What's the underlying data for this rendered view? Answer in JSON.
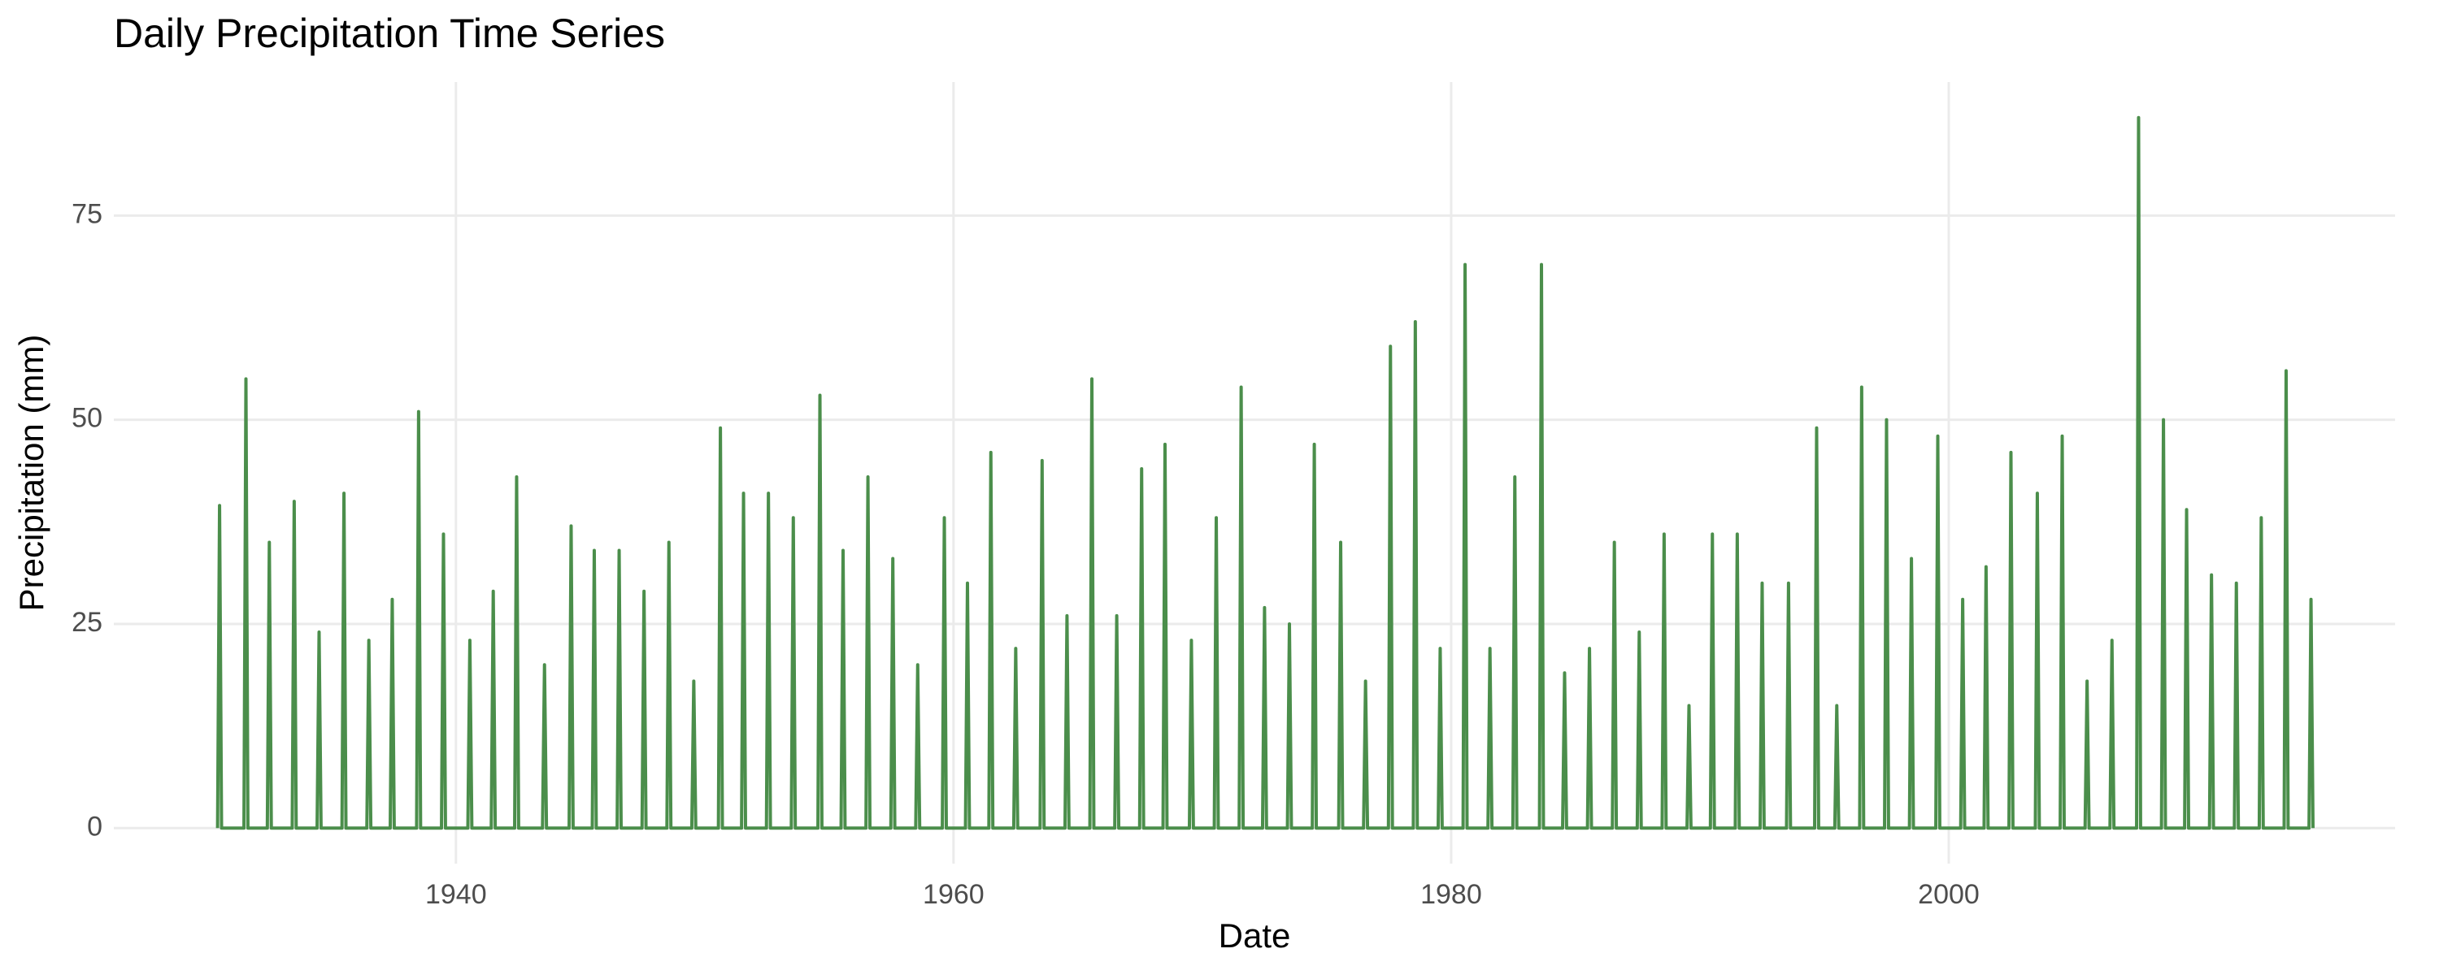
{
  "chart_data": {
    "type": "line",
    "title": "Daily Precipitation Time Series",
    "x_label": "Date",
    "y_label": "Precipitation (mm)",
    "xlim": [
      1926.25,
      2017.94
    ],
    "xticks": [
      1940,
      1960,
      1980,
      2000
    ],
    "ylim": [
      -4.35,
      91.35
    ],
    "yticks": [
      0,
      25,
      50,
      75
    ],
    "grid": true,
    "series": [
      {
        "name": "Precipitation",
        "color": "#4b8e4b",
        "x": [
          1930.42,
          1930.5,
          1930.58,
          1931.48,
          1931.56,
          1931.64,
          1932.42,
          1932.5,
          1932.58,
          1933.42,
          1933.5,
          1933.58,
          1934.42,
          1934.5,
          1934.58,
          1935.42,
          1935.5,
          1935.58,
          1936.42,
          1936.5,
          1936.58,
          1937.36,
          1937.44,
          1937.52,
          1938.42,
          1938.5,
          1938.58,
          1939.42,
          1939.5,
          1939.58,
          1940.48,
          1940.56,
          1940.64,
          1941.42,
          1941.5,
          1941.58,
          1942.36,
          1942.44,
          1942.52,
          1943.48,
          1943.56,
          1943.64,
          1944.55,
          1944.63,
          1944.71,
          1945.48,
          1945.56,
          1945.64,
          1946.48,
          1946.56,
          1946.64,
          1947.48,
          1947.56,
          1947.64,
          1948.48,
          1948.56,
          1948.64,
          1949.48,
          1949.56,
          1949.64,
          1950.55,
          1950.63,
          1950.71,
          1951.48,
          1951.56,
          1951.64,
          1952.48,
          1952.56,
          1952.64,
          1953.48,
          1953.56,
          1953.64,
          1954.55,
          1954.63,
          1954.71,
          1955.48,
          1955.56,
          1955.64,
          1956.48,
          1956.56,
          1956.64,
          1957.48,
          1957.56,
          1957.64,
          1958.48,
          1958.56,
          1958.64,
          1959.55,
          1959.63,
          1959.71,
          1960.48,
          1960.56,
          1960.64,
          1961.42,
          1961.5,
          1961.58,
          1962.42,
          1962.5,
          1962.58,
          1963.48,
          1963.56,
          1963.64,
          1964.48,
          1964.56,
          1964.64,
          1965.48,
          1965.56,
          1965.64,
          1966.48,
          1966.56,
          1966.64,
          1967.48,
          1967.56,
          1967.64,
          1968.42,
          1968.5,
          1968.58,
          1969.48,
          1969.56,
          1969.64,
          1970.48,
          1970.56,
          1970.64,
          1971.48,
          1971.56,
          1971.64,
          1972.42,
          1972.5,
          1972.58,
          1973.42,
          1973.5,
          1973.58,
          1974.42,
          1974.5,
          1974.58,
          1975.48,
          1975.56,
          1975.64,
          1976.48,
          1976.56,
          1976.64,
          1977.48,
          1977.56,
          1977.64,
          1978.48,
          1978.56,
          1978.64,
          1979.48,
          1979.56,
          1979.64,
          1980.48,
          1980.56,
          1980.64,
          1981.48,
          1981.56,
          1981.64,
          1982.48,
          1982.56,
          1982.64,
          1983.55,
          1983.63,
          1983.71,
          1984.48,
          1984.56,
          1984.64,
          1985.48,
          1985.56,
          1985.64,
          1986.48,
          1986.56,
          1986.64,
          1987.48,
          1987.56,
          1987.64,
          1988.48,
          1988.56,
          1988.64,
          1989.48,
          1989.56,
          1989.64,
          1990.42,
          1990.5,
          1990.58,
          1991.42,
          1991.5,
          1991.58,
          1992.42,
          1992.5,
          1992.58,
          1993.48,
          1993.56,
          1993.64,
          1994.61,
          1994.69,
          1994.77,
          1995.42,
          1995.5,
          1995.58,
          1996.42,
          1996.5,
          1996.58,
          1997.42,
          1997.5,
          1997.58,
          1998.42,
          1998.5,
          1998.58,
          1999.48,
          1999.56,
          1999.64,
          2000.48,
          2000.56,
          2000.64,
          2001.42,
          2001.5,
          2001.58,
          2002.42,
          2002.5,
          2002.58,
          2003.48,
          2003.56,
          2003.64,
          2004.48,
          2004.56,
          2004.64,
          2005.48,
          2005.56,
          2005.64,
          2006.48,
          2006.56,
          2006.64,
          2007.55,
          2007.63,
          2007.71,
          2008.55,
          2008.63,
          2008.71,
          2009.48,
          2009.56,
          2009.64,
          2010.48,
          2010.56,
          2010.64,
          2011.48,
          2011.56,
          2011.64,
          2012.48,
          2012.56,
          2012.64,
          2013.48,
          2013.56,
          2013.64,
          2014.48,
          2014.56,
          2014.64
        ],
        "values": [
          0,
          39.5,
          0,
          0,
          55,
          0,
          0,
          35,
          0,
          0,
          40,
          0,
          0,
          24,
          0,
          0,
          41,
          0,
          0,
          23,
          0,
          0,
          28,
          0,
          0,
          51,
          0,
          0,
          36,
          0,
          0,
          23,
          0,
          0,
          29,
          0,
          0,
          43,
          0,
          0,
          20,
          0,
          0,
          37,
          0,
          0,
          34,
          0,
          0,
          34,
          0,
          0,
          29,
          0,
          0,
          35,
          0,
          0,
          18,
          0,
          0,
          49,
          0,
          0,
          41,
          0,
          0,
          41,
          0,
          0,
          38,
          0,
          0,
          53,
          0,
          0,
          34,
          0,
          0,
          43,
          0,
          0,
          33,
          0,
          0,
          20,
          0,
          0,
          38,
          0,
          0,
          30,
          0,
          0,
          46,
          0,
          0,
          22,
          0,
          0,
          45,
          0,
          0,
          26,
          0,
          0,
          55,
          0,
          0,
          26,
          0,
          0,
          44,
          0,
          0,
          47,
          0,
          0,
          23,
          0,
          0,
          38,
          0,
          0,
          54,
          0,
          0,
          27,
          0,
          0,
          25,
          0,
          0,
          47,
          0,
          0,
          35,
          0,
          0,
          18,
          0,
          0,
          59,
          0,
          0,
          62,
          0,
          0,
          22,
          0,
          0,
          69,
          0,
          0,
          22,
          0,
          0,
          43,
          0,
          0,
          69,
          0,
          0,
          19,
          0,
          0,
          22,
          0,
          0,
          35,
          0,
          0,
          24,
          0,
          0,
          36,
          0,
          0,
          15,
          0,
          0,
          36,
          0,
          0,
          36,
          0,
          0,
          30,
          0,
          0,
          30,
          0,
          0,
          49,
          0,
          0,
          15,
          0,
          0,
          54,
          0,
          0,
          50,
          0,
          0,
          33,
          0,
          0,
          48,
          0,
          0,
          28,
          0,
          0,
          32,
          0,
          0,
          46,
          0,
          0,
          41,
          0,
          0,
          48,
          0,
          0,
          18,
          0,
          0,
          23,
          0,
          0,
          87,
          0,
          0,
          50,
          0,
          0,
          39,
          0,
          0,
          31,
          0,
          0,
          30,
          0,
          0,
          38,
          0,
          0,
          56,
          0,
          0,
          28,
          0
        ]
      }
    ]
  }
}
